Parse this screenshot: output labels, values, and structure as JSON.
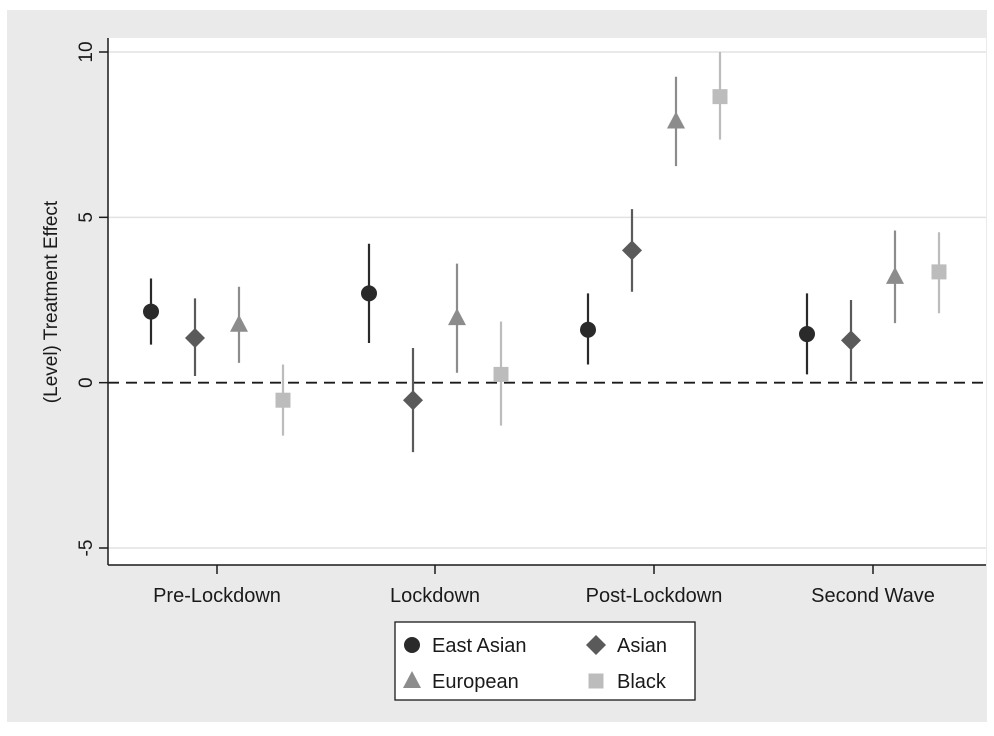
{
  "chart_data": {
    "type": "scatter",
    "title": "",
    "xlabel": "",
    "ylabel": "(Level) Treatment Effect",
    "ylim": [
      -5,
      10
    ],
    "yticks": [
      -5,
      0,
      5,
      10
    ],
    "categories": [
      "Pre-Lockdown",
      "Lockdown",
      "Post-Lockdown",
      "Second Wave"
    ],
    "reference_line": 0,
    "grid": true,
    "legend_position": "bottom",
    "series": [
      {
        "name": "East Asian",
        "marker": "circle",
        "color": "#2a2a2a",
        "values": [
          2.15,
          2.7,
          1.6,
          1.47
        ],
        "ci_low": [
          1.15,
          1.2,
          0.55,
          0.25
        ],
        "ci_high": [
          3.15,
          4.2,
          2.7,
          2.7
        ]
      },
      {
        "name": "Asian",
        "marker": "diamond",
        "color": "#5a5a5a",
        "values": [
          1.35,
          -0.53,
          4.0,
          1.28
        ],
        "ci_low": [
          0.2,
          -2.1,
          2.75,
          0.05
        ],
        "ci_high": [
          2.55,
          1.05,
          5.25,
          2.5
        ]
      },
      {
        "name": "European",
        "marker": "triangle",
        "color": "#8c8c8c",
        "values": [
          1.75,
          1.95,
          7.9,
          3.2
        ],
        "ci_low": [
          0.6,
          0.3,
          6.55,
          1.8
        ],
        "ci_high": [
          2.9,
          3.6,
          9.25,
          4.6
        ]
      },
      {
        "name": "Black",
        "marker": "square",
        "color": "#bcbcbc",
        "values": [
          -0.53,
          0.25,
          8.65,
          3.35
        ],
        "ci_low": [
          -1.6,
          -1.3,
          7.35,
          2.1
        ],
        "ci_high": [
          0.55,
          1.85,
          10.0,
          4.55
        ]
      }
    ]
  }
}
